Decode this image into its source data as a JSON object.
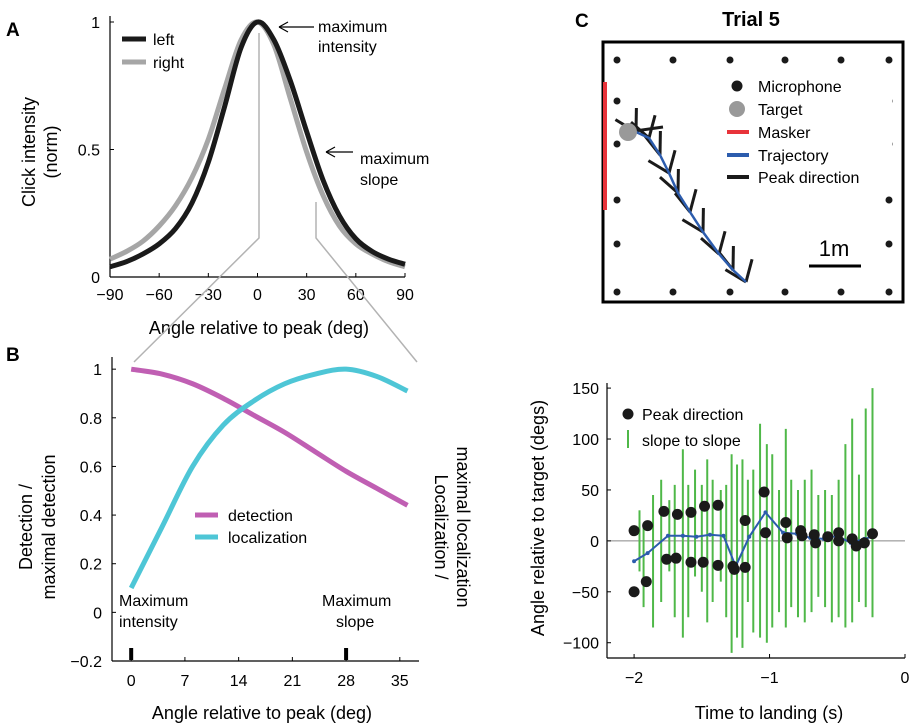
{
  "chart_data": [
    {
      "panel": "A",
      "type": "line",
      "xlabel": "Angle relative to peak (deg)",
      "ylabel": "Click intensity (norm)",
      "xlim": [
        -90,
        90
      ],
      "ylim": [
        0,
        1
      ],
      "xticks": [
        "−90",
        "−60",
        "−30",
        "0",
        "30",
        "60",
        "90"
      ],
      "yticks": [
        "0",
        "0.5",
        "1"
      ],
      "x": [
        -90,
        -80,
        -70,
        -60,
        -50,
        -40,
        -30,
        -20,
        -10,
        0,
        10,
        20,
        30,
        40,
        50,
        60,
        70,
        80,
        90
      ],
      "series": [
        {
          "name": "left",
          "color": "#1a1a1a",
          "values": [
            0.04,
            0.06,
            0.09,
            0.13,
            0.19,
            0.29,
            0.45,
            0.67,
            0.9,
            1.0,
            0.93,
            0.77,
            0.57,
            0.38,
            0.24,
            0.15,
            0.1,
            0.07,
            0.05
          ]
        },
        {
          "name": "right",
          "color": "#a6a6a6",
          "values": [
            0.07,
            0.1,
            0.14,
            0.2,
            0.28,
            0.39,
            0.54,
            0.74,
            0.93,
            1.0,
            0.91,
            0.7,
            0.49,
            0.32,
            0.2,
            0.13,
            0.09,
            0.06,
            0.04
          ]
        }
      ],
      "annotations": [
        {
          "text": "maximum intensity"
        },
        {
          "text": "maximum slope"
        }
      ],
      "legend": "top-left"
    },
    {
      "panel": "B",
      "type": "line",
      "xlabel": "Angle relative to peak (deg)",
      "ylabel": "Detection / maximal detection",
      "ylabel_right": "Localization / maximal localization",
      "xlim": [
        -2.5,
        37.5
      ],
      "ylim": [
        -0.2,
        1.05
      ],
      "xticks": [
        "0",
        "7",
        "14",
        "21",
        "28",
        "35"
      ],
      "yticks": [
        "−0.2",
        "0",
        "0.2",
        "0.4",
        "0.6",
        "0.8",
        "1"
      ],
      "x": [
        0,
        4,
        8,
        12,
        16,
        20,
        24,
        28,
        32,
        36
      ],
      "series": [
        {
          "name": "detection",
          "color": "#c05fb3",
          "values": [
            1.0,
            0.98,
            0.94,
            0.88,
            0.81,
            0.74,
            0.66,
            0.58,
            0.51,
            0.44
          ]
        },
        {
          "name": "localization",
          "color": "#4ec6d6",
          "values": [
            0.1,
            0.35,
            0.6,
            0.77,
            0.87,
            0.94,
            0.98,
            1.0,
            0.97,
            0.91
          ]
        }
      ],
      "annotations": [
        {
          "text": "Maximum intensity",
          "x": 0
        },
        {
          "text": "Maximum slope",
          "x": 28
        }
      ],
      "legend": "center"
    },
    {
      "panel": "C",
      "type": "scatter",
      "title": "Trial 5",
      "scale_bar": "1m",
      "legend": [
        "Microphone",
        "Target",
        "Masker",
        "Trajectory",
        "Peak direction"
      ],
      "colors": {
        "microphone": "#1a1a1a",
        "target": "#999999",
        "masker": "#e8333a",
        "trajectory": "#2c5cad",
        "peak": "#1a1a1a"
      }
    },
    {
      "panel": "C-lower",
      "type": "scatter",
      "xlabel": "Time to landing (s)",
      "ylabel": "Angle relative to target (degs)",
      "xlim": [
        -2.2,
        0
      ],
      "ylim": [
        -115,
        155
      ],
      "xticks": [
        "−2",
        "−1",
        "0"
      ],
      "yticks": [
        "−100",
        "−50",
        "0",
        "50",
        "100",
        "150"
      ],
      "legend": [
        "Peak direction",
        "slope to slope"
      ],
      "points": [
        {
          "x": -2.0,
          "y": 10
        },
        {
          "x": -2.0,
          "y": -50
        },
        {
          "x": -1.9,
          "y": 15
        },
        {
          "x": -1.91,
          "y": -40
        },
        {
          "x": -1.78,
          "y": 29
        },
        {
          "x": -1.76,
          "y": -18
        },
        {
          "x": -1.68,
          "y": 26
        },
        {
          "x": -1.69,
          "y": -17
        },
        {
          "x": -1.58,
          "y": 28
        },
        {
          "x": -1.58,
          "y": -21
        },
        {
          "x": -1.48,
          "y": 34
        },
        {
          "x": -1.49,
          "y": -21
        },
        {
          "x": -1.38,
          "y": 35
        },
        {
          "x": -1.38,
          "y": -24
        },
        {
          "x": -1.27,
          "y": -25
        },
        {
          "x": -1.26,
          "y": -28
        },
        {
          "x": -1.18,
          "y": -26
        },
        {
          "x": -1.18,
          "y": 20
        },
        {
          "x": -1.04,
          "y": 48
        },
        {
          "x": -1.03,
          "y": 8
        },
        {
          "x": -0.88,
          "y": 18
        },
        {
          "x": -0.87,
          "y": 3
        },
        {
          "x": -0.77,
          "y": 10
        },
        {
          "x": -0.76,
          "y": 5
        },
        {
          "x": -0.67,
          "y": 6
        },
        {
          "x": -0.66,
          "y": -2
        },
        {
          "x": -0.57,
          "y": 4
        },
        {
          "x": -0.49,
          "y": 8
        },
        {
          "x": -0.49,
          "y": 0
        },
        {
          "x": -0.39,
          "y": 2
        },
        {
          "x": -0.36,
          "y": -5
        },
        {
          "x": -0.3,
          "y": -2
        },
        {
          "x": -0.24,
          "y": 7
        }
      ],
      "trajectory": [
        {
          "x": -2.0,
          "y": -20
        },
        {
          "x": -1.9,
          "y": -12
        },
        {
          "x": -1.75,
          "y": 5
        },
        {
          "x": -1.64,
          "y": 5
        },
        {
          "x": -1.54,
          "y": 4
        },
        {
          "x": -1.44,
          "y": 6
        },
        {
          "x": -1.34,
          "y": 5
        },
        {
          "x": -1.25,
          "y": -25
        },
        {
          "x": -1.15,
          "y": 4
        },
        {
          "x": -1.03,
          "y": 28
        },
        {
          "x": -0.9,
          "y": 8
        },
        {
          "x": -0.8,
          "y": 7
        },
        {
          "x": -0.7,
          "y": 3
        },
        {
          "x": -0.6,
          "y": 2
        },
        {
          "x": -0.5,
          "y": 5
        },
        {
          "x": -0.4,
          "y": -2
        },
        {
          "x": -0.3,
          "y": 2
        },
        {
          "x": -0.24,
          "y": 4
        }
      ],
      "errorbars": [
        {
          "x": -1.96,
          "low": -30,
          "high": 30
        },
        {
          "x": -1.93,
          "low": -65,
          "high": 15
        },
        {
          "x": -1.86,
          "low": -85,
          "high": 45
        },
        {
          "x": -1.8,
          "low": -60,
          "high": 60
        },
        {
          "x": -1.74,
          "low": -30,
          "high": 40
        },
        {
          "x": -1.7,
          "low": -75,
          "high": 55
        },
        {
          "x": -1.64,
          "low": -95,
          "high": 90
        },
        {
          "x": -1.6,
          "low": -75,
          "high": 55
        },
        {
          "x": -1.55,
          "low": -35,
          "high": 70
        },
        {
          "x": -1.5,
          "low": -50,
          "high": 55
        },
        {
          "x": -1.46,
          "low": -80,
          "high": 80
        },
        {
          "x": -1.42,
          "low": -60,
          "high": 60
        },
        {
          "x": -1.36,
          "low": -40,
          "high": 50
        },
        {
          "x": -1.32,
          "low": -75,
          "high": 55
        },
        {
          "x": -1.28,
          "low": -110,
          "high": 85
        },
        {
          "x": -1.24,
          "low": -95,
          "high": 75
        },
        {
          "x": -1.2,
          "low": -105,
          "high": 80
        },
        {
          "x": -1.16,
          "low": -60,
          "high": 60
        },
        {
          "x": -1.12,
          "low": -90,
          "high": 70
        },
        {
          "x": -1.07,
          "low": -95,
          "high": 115
        },
        {
          "x": -1.02,
          "low": -100,
          "high": 95
        },
        {
          "x": -0.98,
          "low": -85,
          "high": 85
        },
        {
          "x": -0.93,
          "low": -70,
          "high": 50
        },
        {
          "x": -0.88,
          "low": -85,
          "high": 110
        },
        {
          "x": -0.84,
          "low": -65,
          "high": 60
        },
        {
          "x": -0.79,
          "low": -75,
          "high": 50
        },
        {
          "x": -0.74,
          "low": -80,
          "high": 60
        },
        {
          "x": -0.69,
          "low": -70,
          "high": 70
        },
        {
          "x": -0.64,
          "low": -55,
          "high": 45
        },
        {
          "x": -0.59,
          "low": -65,
          "high": 50
        },
        {
          "x": -0.54,
          "low": -80,
          "high": 45
        },
        {
          "x": -0.49,
          "low": -75,
          "high": 60
        },
        {
          "x": -0.44,
          "low": -85,
          "high": 95
        },
        {
          "x": -0.39,
          "low": -80,
          "high": 120
        },
        {
          "x": -0.34,
          "low": -60,
          "high": 65
        },
        {
          "x": -0.29,
          "low": -65,
          "high": 130
        },
        {
          "x": -0.24,
          "low": -75,
          "high": 150
        }
      ],
      "colors": {
        "points": "#1a1a1a",
        "trajectory": "#2c5cad",
        "errorbars": "#4fb848",
        "zero_line": "#888888"
      }
    }
  ],
  "labels": {
    "panel_a": "A",
    "panel_b": "B",
    "panel_c": "C",
    "a_ylabel_1": "Click intensity",
    "a_ylabel_2": "(norm)",
    "b_ylabel_1": "Detection /",
    "b_ylabel_2": "maximal detection",
    "b_ylabel_r1": "Localization /",
    "b_ylabel_r2": "maximal localization",
    "ann_max_int_1": "maximum",
    "ann_max_int_2": "intensity",
    "ann_max_slope_1": "maximum",
    "ann_max_slope_2": "slope",
    "b_ann_int_1": "Maximum",
    "b_ann_int_2": "intensity",
    "b_ann_slope_1": "Maximum",
    "b_ann_slope_2": "slope"
  }
}
